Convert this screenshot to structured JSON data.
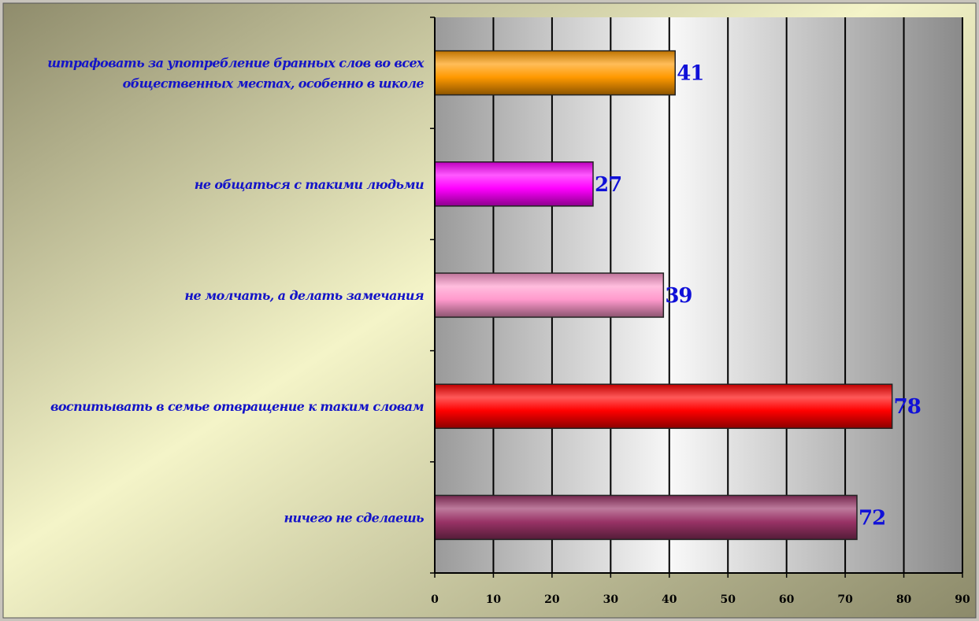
{
  "chart_data": {
    "type": "bar",
    "orientation": "horizontal",
    "categories": [
      [
        "штрафовать за употребление бранных слов во всех",
        "общественных местах, особенно в школе"
      ],
      [
        "не общаться с такими людьми"
      ],
      [
        "не молчать, а делать замечания"
      ],
      [
        "воспитывать в семье отвращение к таким словам"
      ],
      [
        "ничего не сделаешь"
      ]
    ],
    "values": [
      41,
      27,
      39,
      78,
      72
    ],
    "value_labels": [
      "41",
      "27",
      "39",
      "78",
      "72"
    ],
    "colors": [
      "#ff9900",
      "#ff00ff",
      "#ff99cc",
      "#ff0000",
      "#993366"
    ],
    "xlim": [
      0,
      90
    ],
    "xticks": [
      "0",
      "10",
      "20",
      "30",
      "40",
      "50",
      "60",
      "70",
      "80",
      "90"
    ],
    "grid": true,
    "title": "",
    "xlabel": "",
    "ylabel": ""
  }
}
